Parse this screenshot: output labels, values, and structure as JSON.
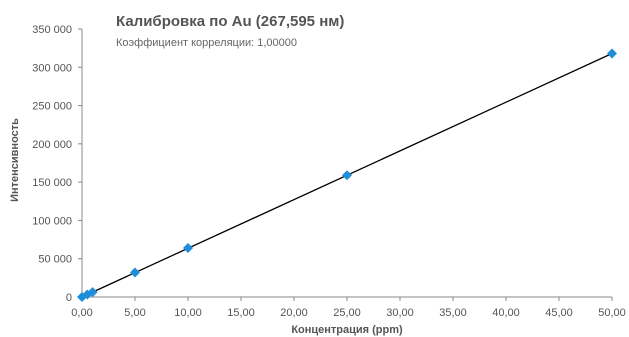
{
  "chart_data": {
    "type": "scatter",
    "title": "Калибровка по Au (267,595 нм)",
    "subtitle": "Коэффициент корреляции: 1,00000",
    "xlabel": "Концентрация (ppm)",
    "ylabel": "Интенсивность",
    "xlim": [
      0,
      50
    ],
    "ylim": [
      0,
      350000
    ],
    "x_ticks": [
      0,
      5,
      10,
      15,
      20,
      25,
      30,
      35,
      40,
      45,
      50
    ],
    "x_tick_labels": [
      "0,00",
      "5,00",
      "10,00",
      "15,00",
      "20,00",
      "25,00",
      "30,00",
      "35,00",
      "40,00",
      "45,00",
      "50,00"
    ],
    "y_ticks": [
      0,
      50000,
      100000,
      150000,
      200000,
      250000,
      300000,
      350000
    ],
    "y_tick_labels": [
      "0",
      "50 000",
      "100 000",
      "150 000",
      "200 000",
      "250 000",
      "300 000",
      "350 000"
    ],
    "grid": false,
    "legend": "none",
    "series": [
      {
        "points": [
          {
            "x": 0,
            "y": 0
          },
          {
            "x": 0.5,
            "y": 3200
          },
          {
            "x": 1,
            "y": 6400
          },
          {
            "x": 5,
            "y": 32000
          },
          {
            "x": 10,
            "y": 64000
          },
          {
            "x": 25,
            "y": 159000
          },
          {
            "x": 50,
            "y": 318000
          }
        ],
        "marker": "diamond",
        "color": "#1f8ed8"
      }
    ],
    "fit_line": {
      "x": [
        0,
        50
      ],
      "y": [
        0,
        318000
      ],
      "color": "#000000"
    },
    "colors": {
      "axis": "#888888",
      "text": "#555555"
    }
  }
}
